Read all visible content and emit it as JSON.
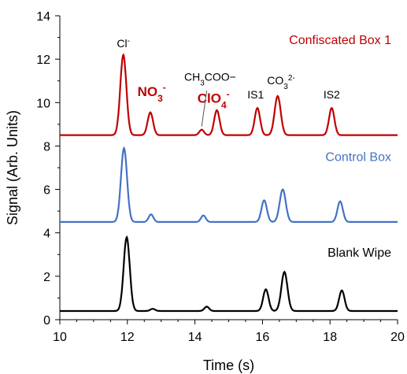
{
  "chart_data": {
    "type": "line",
    "xlabel": "Time (s)",
    "ylabel": "Signal (Arb. Units)",
    "xlim": [
      10,
      20
    ],
    "ylim": [
      0,
      14
    ],
    "x_ticks": [
      10,
      12,
      14,
      16,
      18,
      20
    ],
    "y_ticks": [
      0,
      2,
      4,
      6,
      8,
      10,
      12,
      14
    ],
    "grid": false,
    "legend": "inline labels at right",
    "series": [
      {
        "name": "Confiscated Box 1",
        "color": "#c00000",
        "baseline": 8.5,
        "peaks": [
          {
            "x": 11.88,
            "height": 3.7,
            "width": 0.09
          },
          {
            "x": 12.68,
            "height": 1.05,
            "width": 0.08
          },
          {
            "x": 14.2,
            "height": 0.25,
            "width": 0.07
          },
          {
            "x": 14.65,
            "height": 1.15,
            "width": 0.08
          },
          {
            "x": 15.85,
            "height": 1.25,
            "width": 0.08
          },
          {
            "x": 16.45,
            "height": 1.8,
            "width": 0.09
          },
          {
            "x": 18.05,
            "height": 1.25,
            "width": 0.08
          }
        ]
      },
      {
        "name": "Control Box",
        "color": "#4472c4",
        "baseline": 4.5,
        "peaks": [
          {
            "x": 11.9,
            "height": 3.4,
            "width": 0.09
          },
          {
            "x": 12.7,
            "height": 0.35,
            "width": 0.07
          },
          {
            "x": 14.25,
            "height": 0.3,
            "width": 0.07
          },
          {
            "x": 16.05,
            "height": 1.0,
            "width": 0.08
          },
          {
            "x": 16.6,
            "height": 1.5,
            "width": 0.09
          },
          {
            "x": 18.3,
            "height": 0.95,
            "width": 0.08
          }
        ]
      },
      {
        "name": "Blank Wipe",
        "color": "#000000",
        "baseline": 0.4,
        "peaks": [
          {
            "x": 11.98,
            "height": 3.4,
            "width": 0.09
          },
          {
            "x": 12.75,
            "height": 0.1,
            "width": 0.07
          },
          {
            "x": 14.35,
            "height": 0.2,
            "width": 0.07
          },
          {
            "x": 16.1,
            "height": 1.0,
            "width": 0.08
          },
          {
            "x": 16.65,
            "height": 1.8,
            "width": 0.09
          },
          {
            "x": 18.35,
            "height": 0.95,
            "width": 0.08
          }
        ]
      }
    ],
    "annotations": [
      {
        "base": "Cl",
        "sup": "-",
        "x": 11.88,
        "y": 12.55,
        "style": "normal"
      },
      {
        "base": "NO",
        "sub": "3",
        "sup": "-",
        "x": 12.72,
        "y": 10.3,
        "style": "bold-red"
      },
      {
        "base": "ClO",
        "sub": "4",
        "sup": "-",
        "x": 14.55,
        "y": 10.0,
        "style": "bold-red"
      },
      {
        "text": "CH3COO−",
        "rich": true,
        "x": 14.45,
        "y": 11.0,
        "style": "normal"
      },
      {
        "text": "IS1",
        "x": 15.8,
        "y": 10.2,
        "style": "normal"
      },
      {
        "base": "CO",
        "sub": "3",
        "sup": "2-",
        "x": 16.55,
        "y": 10.85,
        "style": "normal"
      },
      {
        "text": "IS2",
        "x": 18.05,
        "y": 10.2,
        "style": "normal"
      }
    ]
  }
}
